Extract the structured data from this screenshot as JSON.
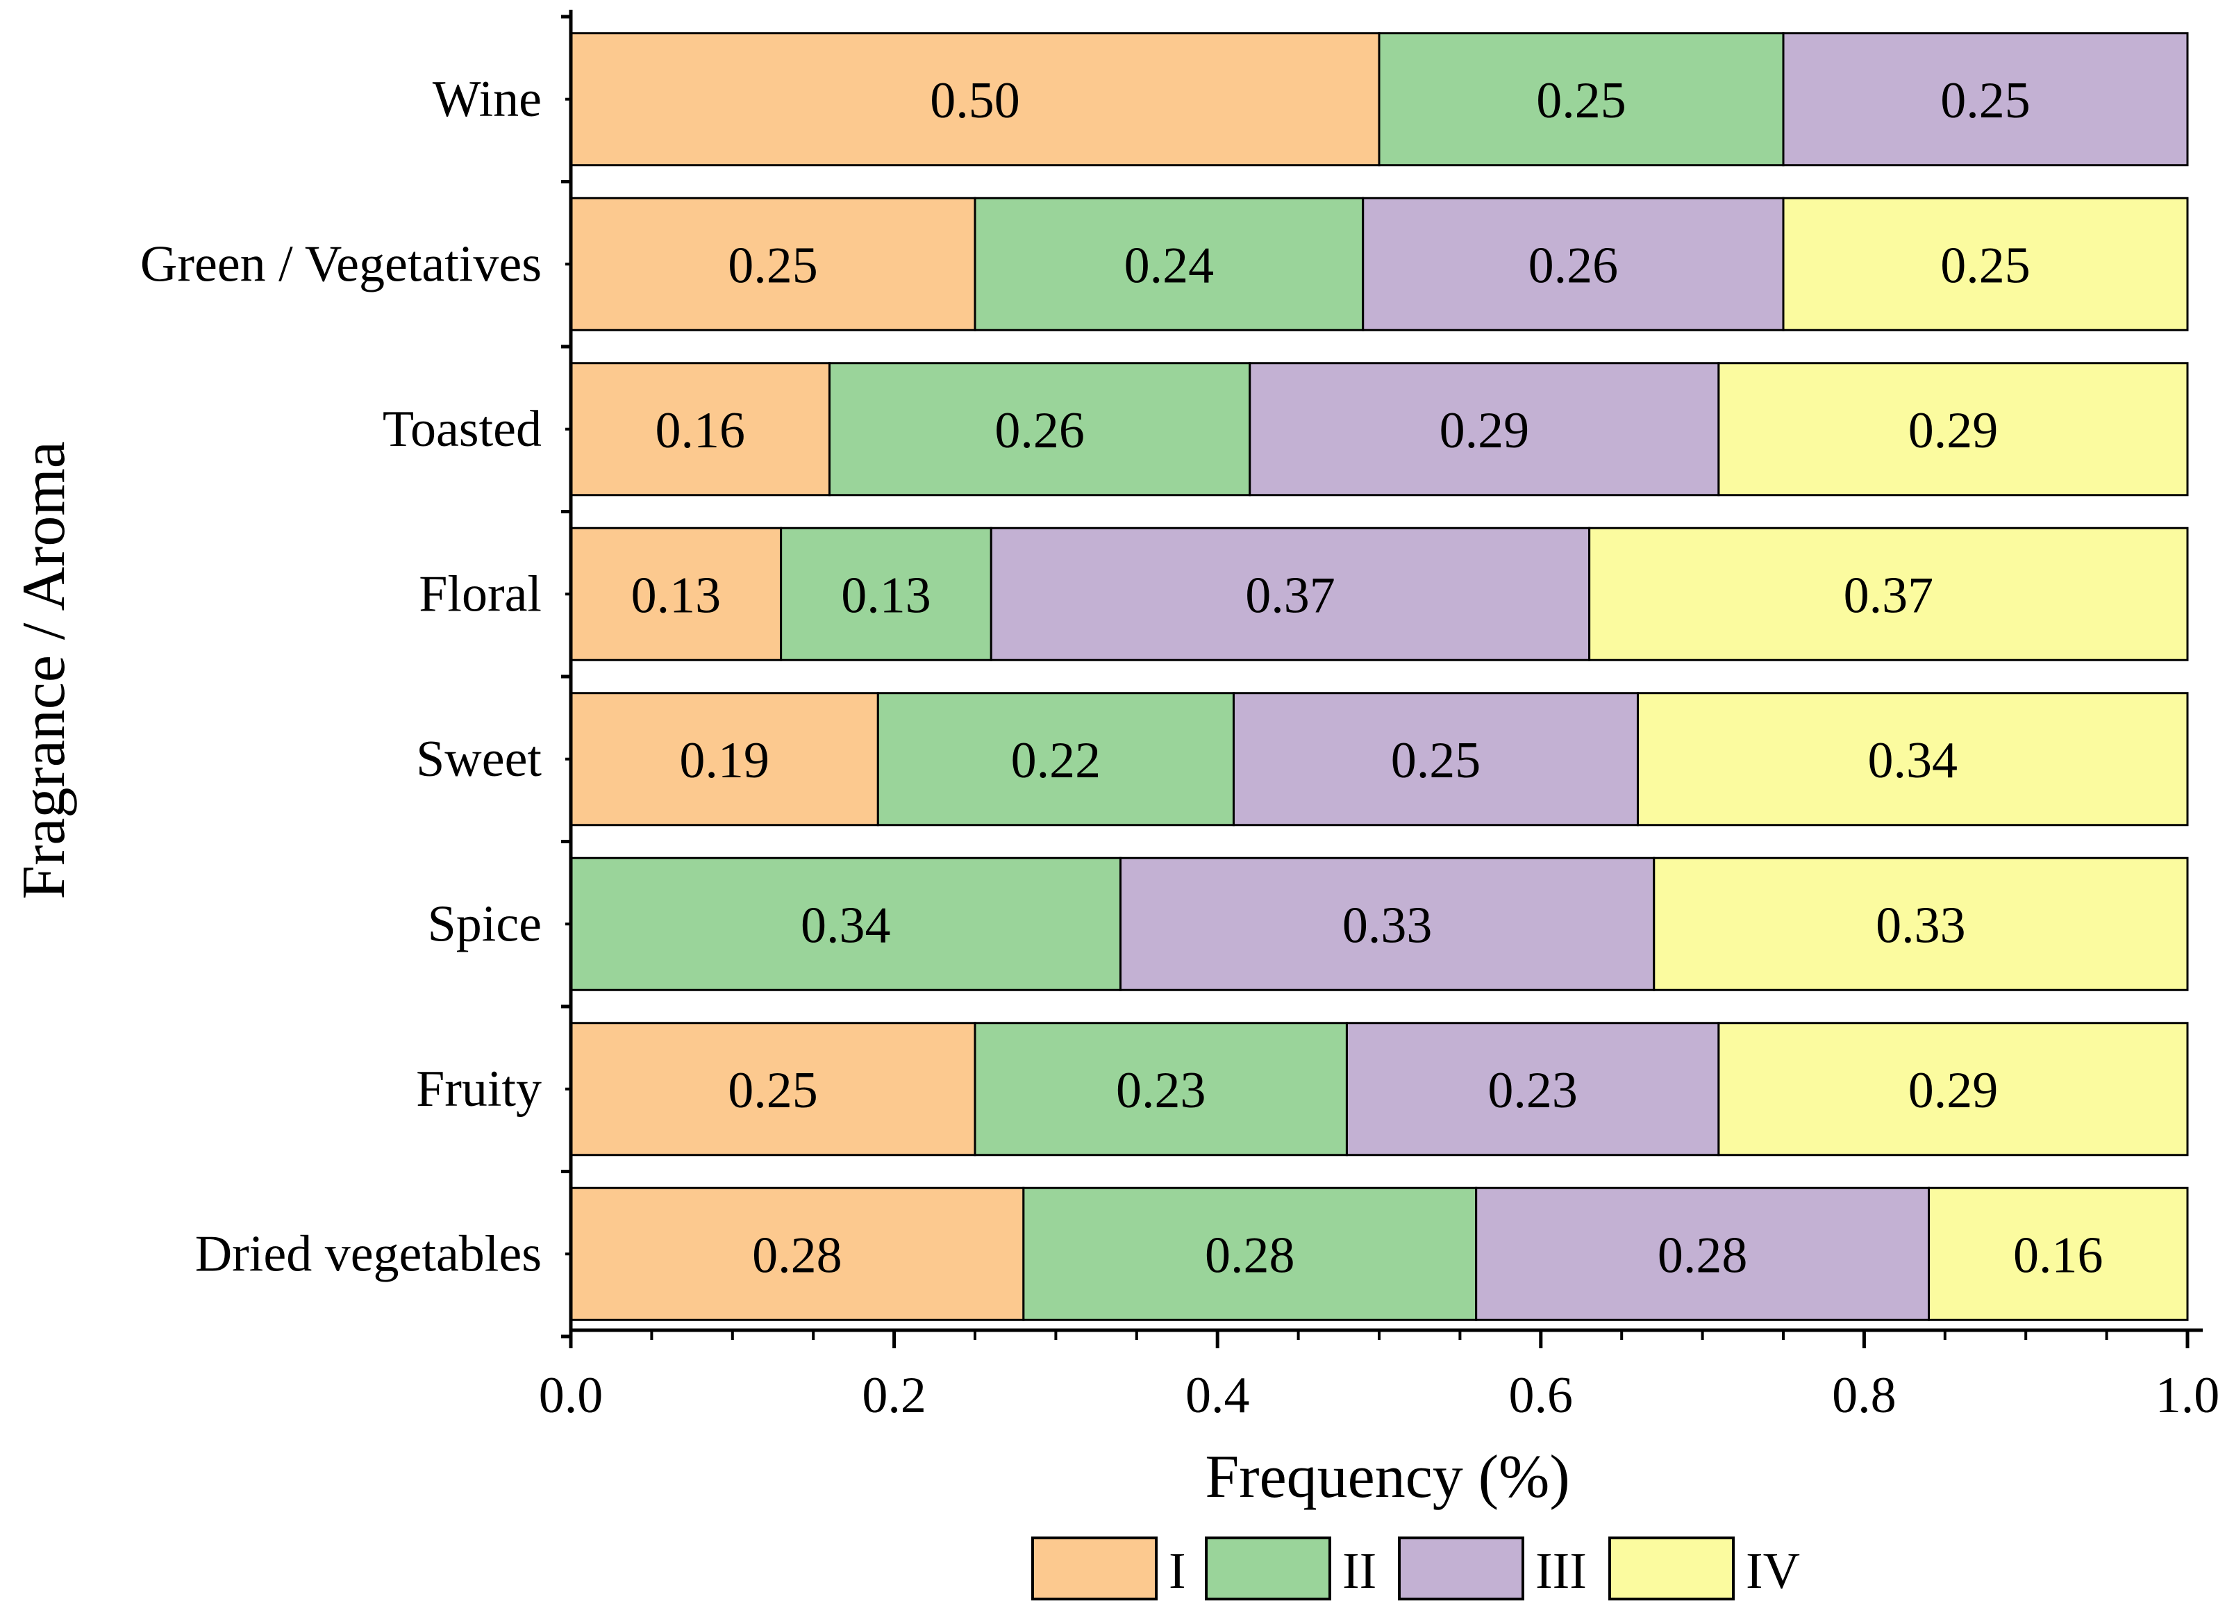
{
  "chart_data": {
    "type": "stacked-bar-horizontal",
    "xlabel": "Frequency (%)",
    "ylabel": "Fragrance / Aroma",
    "xlim": [
      0.0,
      1.0
    ],
    "x_ticks": [
      "0.0",
      "0.2",
      "0.4",
      "0.6",
      "0.8",
      "1.0"
    ],
    "legend_position": "bottom",
    "categories": [
      "Wine",
      "Green / Vegetatives",
      "Toasted",
      "Floral",
      "Sweet",
      "Spice",
      "Fruity",
      "Dried vegetables"
    ],
    "series": [
      {
        "name": "I",
        "color": "#FCC98F",
        "values": [
          0.5,
          0.25,
          0.16,
          0.13,
          0.19,
          null,
          0.25,
          0.28
        ],
        "labels": [
          "0.50",
          "0.25",
          "0.16",
          "0.13",
          "0.19",
          null,
          "0.25",
          "0.28"
        ]
      },
      {
        "name": "II",
        "color": "#9AD49A",
        "values": [
          0.25,
          0.24,
          0.26,
          0.13,
          0.22,
          0.34,
          0.23,
          0.28
        ],
        "labels": [
          "0.25",
          "0.24",
          "0.26",
          "0.13",
          "0.22",
          "0.34",
          "0.23",
          "0.28"
        ]
      },
      {
        "name": "III",
        "color": "#C3B1D3",
        "values": [
          0.25,
          0.26,
          0.29,
          0.37,
          0.25,
          0.33,
          0.23,
          0.28
        ],
        "labels": [
          "0.25",
          "0.26",
          "0.29",
          "0.37",
          "0.25",
          "0.33",
          "0.23",
          "0.28"
        ]
      },
      {
        "name": "IV",
        "color": "#FBFB9F",
        "values": [
          null,
          0.25,
          0.29,
          0.37,
          0.34,
          0.33,
          0.29,
          0.16
        ],
        "labels": [
          null,
          "0.25",
          "0.29",
          "0.37",
          "0.34",
          "0.33",
          "0.29",
          "0.16"
        ]
      }
    ]
  }
}
